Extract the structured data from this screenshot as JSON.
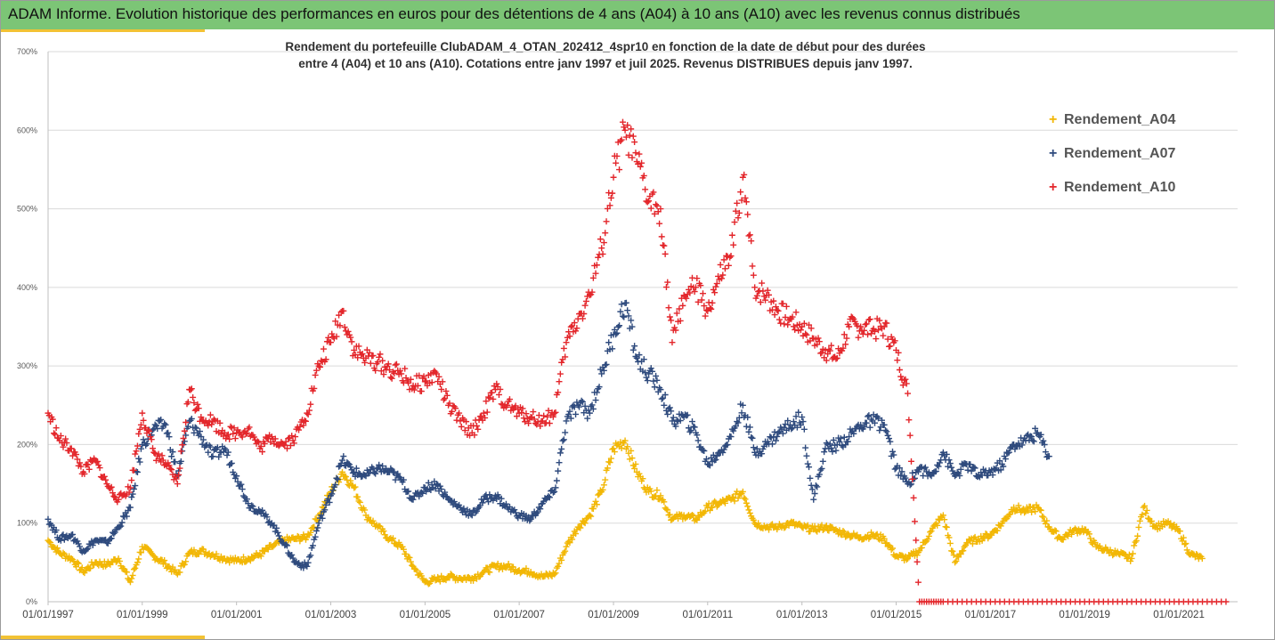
{
  "header": {
    "title": "ADAM Informe. Evolution historique des performances en euros pour des détentions de 4 ans (A04) à 10 ans (A10) avec les revenus connus distribués",
    "accent_color": "#7cc576",
    "underline_color": "#f2c234"
  },
  "chart_data": {
    "type": "scatter",
    "title_line1": "Rendement du portefeuille ClubADAM_4_OTAN_202412_4spr10  en fonction de la date de début pour des durées",
    "title_line2": "entre 4 (A04) et 10 ans (A10). Cotations entre janv 1997 et juil 2025. Revenus DISTRIBUES depuis janv 1997.",
    "marker": "+",
    "ylim": [
      0,
      700
    ],
    "xlim": [
      "1997-01-01",
      "2022-04-01"
    ],
    "y_ticks": [
      "0%",
      "100%",
      "200%",
      "300%",
      "400%",
      "500%",
      "600%",
      "700%"
    ],
    "x_ticks": [
      "01/01/1997",
      "01/01/1999",
      "01/01/2001",
      "01/01/2003",
      "01/01/2005",
      "01/01/2007",
      "01/01/2009",
      "01/01/2011",
      "01/01/2013",
      "01/01/2015",
      "01/01/2017",
      "01/01/2019",
      "01/01/2021"
    ],
    "legend_position": "right",
    "series": [
      {
        "name": "Rendement_A04",
        "color": "#f2b705",
        "points": [
          [
            "1997-01-01",
            78
          ],
          [
            "1997-04-01",
            62
          ],
          [
            "1997-07-01",
            55
          ],
          [
            "1997-10-01",
            38
          ],
          [
            "1998-01-01",
            50
          ],
          [
            "1998-04-01",
            47
          ],
          [
            "1998-07-01",
            55
          ],
          [
            "1998-10-01",
            25
          ],
          [
            "1999-01-01",
            70
          ],
          [
            "1999-04-01",
            58
          ],
          [
            "1999-07-01",
            48
          ],
          [
            "1999-10-01",
            35
          ],
          [
            "2000-01-01",
            62
          ],
          [
            "2000-04-01",
            65
          ],
          [
            "2000-07-01",
            60
          ],
          [
            "2000-10-01",
            55
          ],
          [
            "2001-01-01",
            52
          ],
          [
            "2001-04-01",
            55
          ],
          [
            "2001-07-01",
            60
          ],
          [
            "2001-10-01",
            70
          ],
          [
            "2002-01-01",
            78
          ],
          [
            "2002-04-01",
            80
          ],
          [
            "2002-07-01",
            82
          ],
          [
            "2002-10-01",
            110
          ],
          [
            "2003-01-01",
            140
          ],
          [
            "2003-04-01",
            165
          ],
          [
            "2003-07-01",
            145
          ],
          [
            "2003-10-01",
            110
          ],
          [
            "2004-01-01",
            95
          ],
          [
            "2004-04-01",
            80
          ],
          [
            "2004-07-01",
            70
          ],
          [
            "2004-10-01",
            45
          ],
          [
            "2005-01-01",
            25
          ],
          [
            "2005-04-01",
            28
          ],
          [
            "2005-07-01",
            32
          ],
          [
            "2005-10-01",
            30
          ],
          [
            "2006-01-01",
            30
          ],
          [
            "2006-04-01",
            38
          ],
          [
            "2006-07-01",
            45
          ],
          [
            "2006-10-01",
            45
          ],
          [
            "2007-01-01",
            40
          ],
          [
            "2007-04-01",
            38
          ],
          [
            "2007-07-01",
            32
          ],
          [
            "2007-10-01",
            35
          ],
          [
            "2008-01-01",
            70
          ],
          [
            "2008-04-01",
            95
          ],
          [
            "2008-07-01",
            110
          ],
          [
            "2008-10-01",
            140
          ],
          [
            "2009-01-01",
            195
          ],
          [
            "2009-04-01",
            205
          ],
          [
            "2009-07-01",
            165
          ],
          [
            "2009-10-01",
            140
          ],
          [
            "2010-01-01",
            135
          ],
          [
            "2010-04-01",
            105
          ],
          [
            "2010-07-01",
            110
          ],
          [
            "2010-10-01",
            105
          ],
          [
            "2011-01-01",
            120
          ],
          [
            "2011-04-01",
            125
          ],
          [
            "2011-07-01",
            130
          ],
          [
            "2011-10-01",
            140
          ],
          [
            "2012-01-01",
            100
          ],
          [
            "2012-04-01",
            95
          ],
          [
            "2012-07-01",
            95
          ],
          [
            "2012-10-01",
            100
          ],
          [
            "2013-01-01",
            95
          ],
          [
            "2013-04-01",
            92
          ],
          [
            "2013-07-01",
            95
          ],
          [
            "2013-10-01",
            90
          ],
          [
            "2014-01-01",
            85
          ],
          [
            "2014-04-01",
            82
          ],
          [
            "2014-07-01",
            85
          ],
          [
            "2014-10-01",
            80
          ],
          [
            "2015-01-01",
            58
          ],
          [
            "2015-04-01",
            55
          ],
          [
            "2015-07-01",
            65
          ],
          [
            "2015-10-01",
            90
          ],
          [
            "2016-01-01",
            110
          ],
          [
            "2016-04-01",
            50
          ],
          [
            "2016-07-01",
            75
          ],
          [
            "2016-10-01",
            80
          ],
          [
            "2017-01-01",
            85
          ],
          [
            "2017-04-01",
            100
          ],
          [
            "2017-07-01",
            120
          ],
          [
            "2017-10-01",
            115
          ],
          [
            "2018-01-01",
            120
          ],
          [
            "2018-04-01",
            95
          ],
          [
            "2018-07-01",
            80
          ],
          [
            "2018-10-01",
            90
          ],
          [
            "2019-01-01",
            92
          ],
          [
            "2019-04-01",
            70
          ],
          [
            "2019-07-01",
            65
          ],
          [
            "2019-10-01",
            60
          ],
          [
            "2020-01-01",
            55
          ],
          [
            "2020-04-01",
            120
          ],
          [
            "2020-07-01",
            95
          ],
          [
            "2020-10-01",
            100
          ],
          [
            "2021-01-01",
            90
          ],
          [
            "2021-04-01",
            60
          ],
          [
            "2021-07-01",
            55
          ]
        ]
      },
      {
        "name": "Rendement_A07",
        "color": "#2e4a7d",
        "points": [
          [
            "1997-01-01",
            105
          ],
          [
            "1997-04-01",
            80
          ],
          [
            "1997-07-01",
            85
          ],
          [
            "1997-10-01",
            65
          ],
          [
            "1998-01-01",
            78
          ],
          [
            "1998-04-01",
            75
          ],
          [
            "1998-07-01",
            95
          ],
          [
            "1998-10-01",
            120
          ],
          [
            "1999-01-01",
            200
          ],
          [
            "1999-04-01",
            220
          ],
          [
            "1999-07-01",
            225
          ],
          [
            "1999-10-01",
            160
          ],
          [
            "2000-01-01",
            230
          ],
          [
            "2000-04-01",
            210
          ],
          [
            "2000-07-01",
            185
          ],
          [
            "2000-10-01",
            195
          ],
          [
            "2001-01-01",
            160
          ],
          [
            "2001-04-01",
            125
          ],
          [
            "2001-07-01",
            115
          ],
          [
            "2001-10-01",
            100
          ],
          [
            "2002-01-01",
            75
          ],
          [
            "2002-04-01",
            50
          ],
          [
            "2002-07-01",
            45
          ],
          [
            "2002-10-01",
            100
          ],
          [
            "2003-01-01",
            135
          ],
          [
            "2003-04-01",
            180
          ],
          [
            "2003-07-01",
            165
          ],
          [
            "2003-10-01",
            160
          ],
          [
            "2004-01-01",
            170
          ],
          [
            "2004-04-01",
            165
          ],
          [
            "2004-07-01",
            155
          ],
          [
            "2004-10-01",
            130
          ],
          [
            "2005-01-01",
            145
          ],
          [
            "2005-04-01",
            150
          ],
          [
            "2005-07-01",
            130
          ],
          [
            "2005-10-01",
            120
          ],
          [
            "2006-01-01",
            110
          ],
          [
            "2006-04-01",
            130
          ],
          [
            "2006-07-01",
            135
          ],
          [
            "2006-10-01",
            120
          ],
          [
            "2007-01-01",
            110
          ],
          [
            "2007-04-01",
            105
          ],
          [
            "2007-07-01",
            125
          ],
          [
            "2007-10-01",
            140
          ],
          [
            "2008-01-01",
            230
          ],
          [
            "2008-04-01",
            250
          ],
          [
            "2008-07-01",
            240
          ],
          [
            "2008-10-01",
            290
          ],
          [
            "2009-01-01",
            340
          ],
          [
            "2009-04-01",
            380
          ],
          [
            "2009-07-01",
            310
          ],
          [
            "2009-10-01",
            290
          ],
          [
            "2010-01-01",
            270
          ],
          [
            "2010-04-01",
            230
          ],
          [
            "2010-07-01",
            235
          ],
          [
            "2010-10-01",
            215
          ],
          [
            "2011-01-01",
            175
          ],
          [
            "2011-04-01",
            190
          ],
          [
            "2011-07-01",
            210
          ],
          [
            "2011-10-01",
            250
          ],
          [
            "2012-01-01",
            190
          ],
          [
            "2012-04-01",
            200
          ],
          [
            "2012-07-01",
            215
          ],
          [
            "2012-10-01",
            225
          ],
          [
            "2013-01-01",
            235
          ],
          [
            "2013-04-01",
            130
          ],
          [
            "2013-07-01",
            195
          ],
          [
            "2013-10-01",
            200
          ],
          [
            "2014-01-01",
            210
          ],
          [
            "2014-04-01",
            225
          ],
          [
            "2014-07-01",
            230
          ],
          [
            "2014-10-01",
            225
          ],
          [
            "2015-01-01",
            170
          ],
          [
            "2015-04-01",
            150
          ],
          [
            "2015-07-01",
            170
          ],
          [
            "2015-10-01",
            160
          ],
          [
            "2016-01-01",
            190
          ],
          [
            "2016-04-01",
            160
          ],
          [
            "2016-07-01",
            175
          ],
          [
            "2016-10-01",
            160
          ],
          [
            "2017-01-01",
            165
          ],
          [
            "2017-04-01",
            175
          ],
          [
            "2017-07-01",
            200
          ],
          [
            "2017-10-01",
            205
          ],
          [
            "2018-01-01",
            215
          ],
          [
            "2018-04-01",
            185
          ]
        ]
      },
      {
        "name": "Rendement_A10",
        "color": "#e3262b",
        "points": [
          [
            "1997-01-01",
            240
          ],
          [
            "1997-04-01",
            205
          ],
          [
            "1997-07-01",
            195
          ],
          [
            "1997-10-01",
            165
          ],
          [
            "1998-01-01",
            180
          ],
          [
            "1998-04-01",
            150
          ],
          [
            "1998-07-01",
            130
          ],
          [
            "1998-10-01",
            145
          ],
          [
            "1999-01-01",
            240
          ],
          [
            "1999-04-01",
            190
          ],
          [
            "1999-07-01",
            175
          ],
          [
            "1999-10-01",
            150
          ],
          [
            "2000-01-01",
            270
          ],
          [
            "2000-04-01",
            235
          ],
          [
            "2000-07-01",
            230
          ],
          [
            "2000-10-01",
            215
          ],
          [
            "2001-01-01",
            215
          ],
          [
            "2001-04-01",
            220
          ],
          [
            "2001-07-01",
            195
          ],
          [
            "2001-10-01",
            210
          ],
          [
            "2002-01-01",
            200
          ],
          [
            "2002-04-01",
            210
          ],
          [
            "2002-07-01",
            240
          ],
          [
            "2002-10-01",
            300
          ],
          [
            "2003-01-01",
            330
          ],
          [
            "2003-04-01",
            370
          ],
          [
            "2003-07-01",
            320
          ],
          [
            "2003-10-01",
            310
          ],
          [
            "2004-01-01",
            305
          ],
          [
            "2004-04-01",
            295
          ],
          [
            "2004-07-01",
            290
          ],
          [
            "2004-10-01",
            275
          ],
          [
            "2005-01-01",
            280
          ],
          [
            "2005-04-01",
            290
          ],
          [
            "2005-07-01",
            250
          ],
          [
            "2005-10-01",
            230
          ],
          [
            "2006-01-01",
            215
          ],
          [
            "2006-04-01",
            240
          ],
          [
            "2006-07-01",
            270
          ],
          [
            "2006-10-01",
            250
          ],
          [
            "2007-01-01",
            240
          ],
          [
            "2007-04-01",
            235
          ],
          [
            "2007-07-01",
            230
          ],
          [
            "2007-10-01",
            240
          ],
          [
            "2008-01-01",
            330
          ],
          [
            "2008-04-01",
            360
          ],
          [
            "2008-07-01",
            390
          ],
          [
            "2008-10-01",
            450
          ],
          [
            "2009-01-01",
            540
          ],
          [
            "2009-04-01",
            600
          ],
          [
            "2009-07-01",
            560
          ],
          [
            "2009-10-01",
            510
          ],
          [
            "2010-01-01",
            500
          ],
          [
            "2010-04-01",
            330
          ],
          [
            "2010-07-01",
            390
          ],
          [
            "2010-10-01",
            400
          ],
          [
            "2011-01-01",
            370
          ],
          [
            "2011-04-01",
            410
          ],
          [
            "2011-07-01",
            440
          ],
          [
            "2011-10-01",
            540
          ],
          [
            "2012-01-01",
            400
          ],
          [
            "2012-04-01",
            390
          ],
          [
            "2012-07-01",
            370
          ],
          [
            "2012-10-01",
            360
          ],
          [
            "2013-01-01",
            350
          ],
          [
            "2013-04-01",
            335
          ],
          [
            "2013-07-01",
            320
          ],
          [
            "2013-10-01",
            310
          ],
          [
            "2014-01-01",
            350
          ],
          [
            "2014-04-01",
            350
          ],
          [
            "2014-07-01",
            345
          ],
          [
            "2014-10-01",
            350
          ],
          [
            "2015-01-01",
            320
          ],
          [
            "2015-04-01",
            265
          ],
          [
            "2015-07-01",
            0
          ],
          [
            "2016-01-01",
            0
          ],
          [
            "2017-01-01",
            0
          ],
          [
            "2018-01-01",
            0
          ],
          [
            "2019-01-01",
            0
          ],
          [
            "2020-01-01",
            0
          ],
          [
            "2021-01-01",
            0
          ],
          [
            "2022-01-01",
            0
          ]
        ]
      }
    ]
  }
}
